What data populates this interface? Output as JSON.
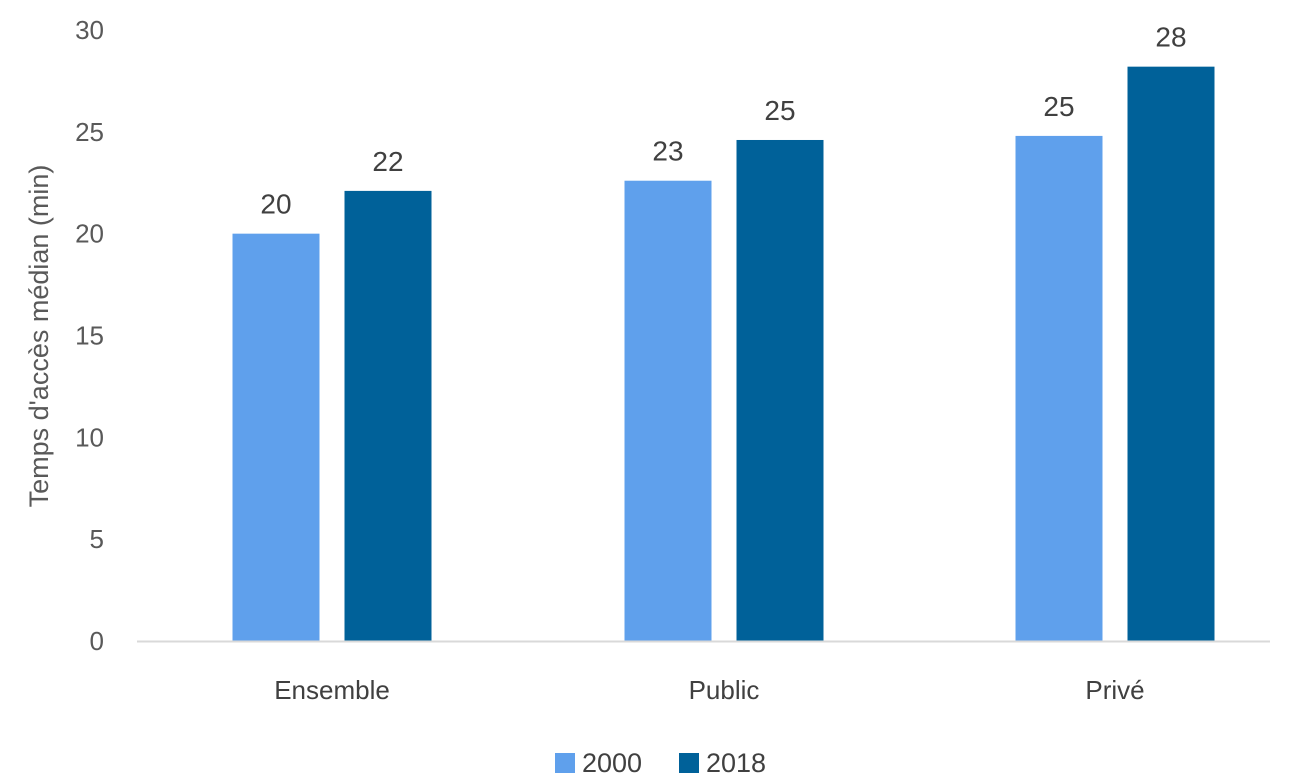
{
  "chart_data": {
    "type": "bar",
    "title": "",
    "xlabel": "",
    "ylabel": "Temps d'accès médian (min)",
    "ylim": [
      0,
      30
    ],
    "yticks": [
      0,
      5,
      10,
      15,
      20,
      25,
      30
    ],
    "grid": false,
    "legend_position": "bottom",
    "categories": [
      "Ensemble",
      "Public",
      "Privé"
    ],
    "series": [
      {
        "name": "2000",
        "color": "#5FA0EC",
        "values": [
          20,
          22.6,
          24.8
        ],
        "labels": [
          "20",
          "23",
          "25"
        ]
      },
      {
        "name": "2018",
        "color": "#006199",
        "values": [
          22.1,
          24.6,
          28.2
        ],
        "labels": [
          "22",
          "25",
          "28"
        ]
      }
    ]
  }
}
